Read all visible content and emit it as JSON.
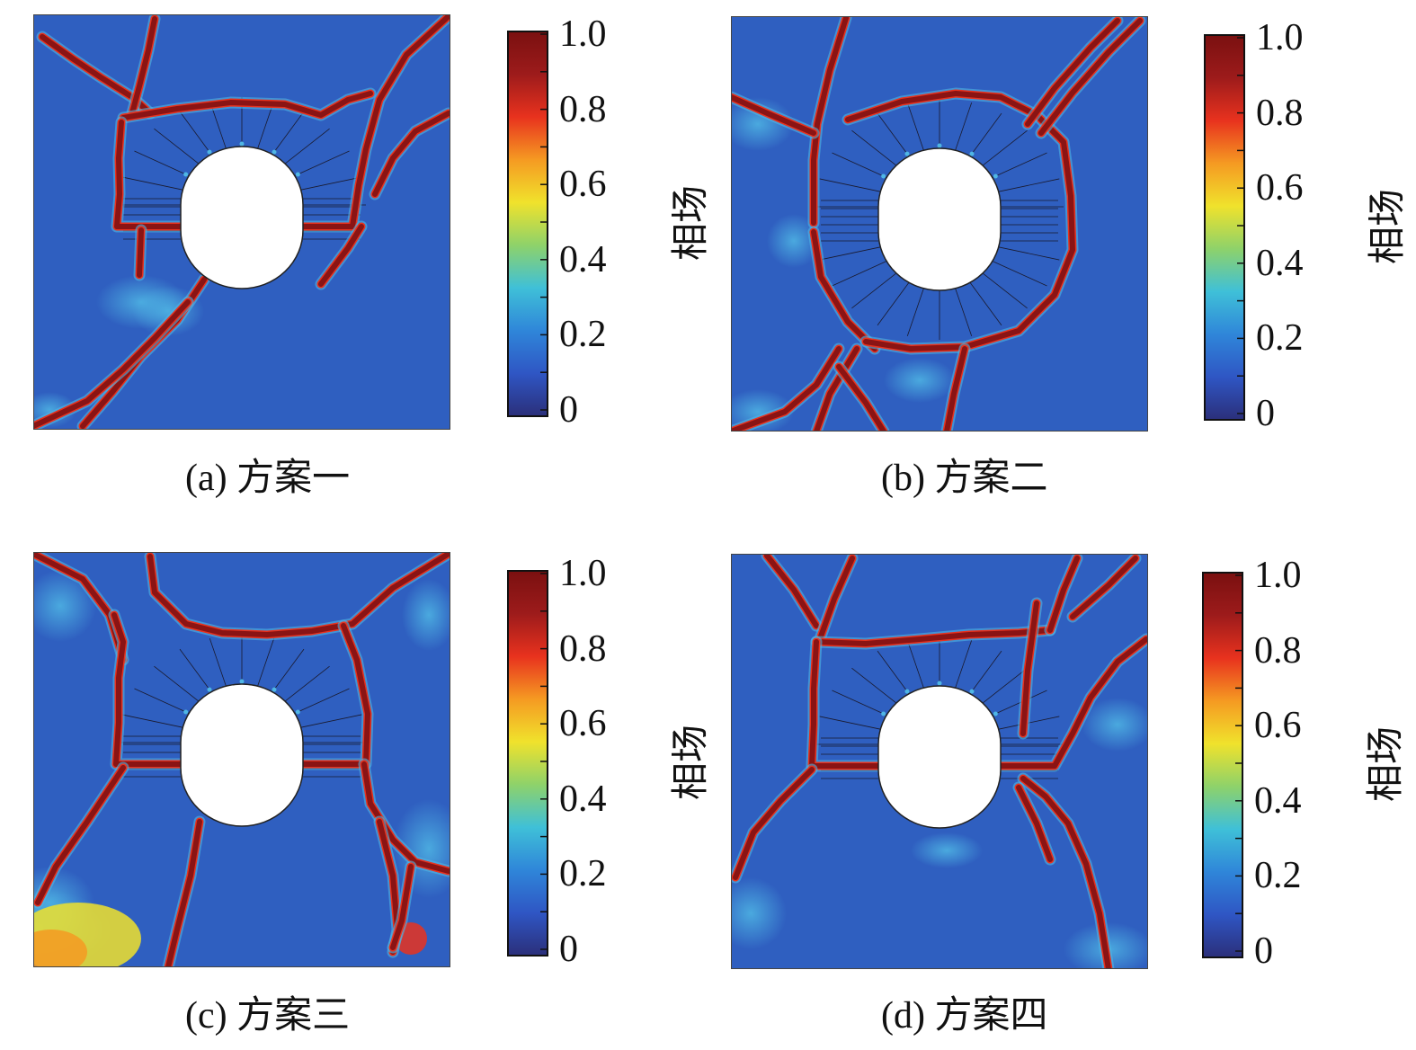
{
  "colormap": {
    "stops": [
      "#2b2f7a",
      "#2f56c4",
      "#2f86d9",
      "#3fc0d8",
      "#8ed26a",
      "#f0e22c",
      "#f59a22",
      "#e8321e",
      "#9d1b1b",
      "#7a1010"
    ],
    "background_color": "#2f5fc0",
    "crack_color": "#8a1414",
    "crack_edge_color": "#e8321e",
    "halo_color": "#4fb6e4"
  },
  "colorbar": {
    "title": "相场",
    "ticks": [
      "1.0",
      "0.8",
      "0.6",
      "0.4",
      "0.2",
      "0"
    ],
    "range": [
      0,
      1.0
    ]
  },
  "chart_data": [
    {
      "type": "heatmap",
      "caption_prefix": "(a)",
      "caption_name": "方案一",
      "colorbar_title": "相场",
      "colorbar_ticks": [
        "1.0",
        "0.8",
        "0.6",
        "0.4",
        "0.2",
        "0"
      ],
      "value_range": [
        0,
        1.0
      ]
    },
    {
      "type": "heatmap",
      "caption_prefix": "(b)",
      "caption_name": "方案二",
      "colorbar_title": "相场",
      "colorbar_ticks": [
        "1.0",
        "0.8",
        "0.6",
        "0.4",
        "0.2",
        "0"
      ],
      "value_range": [
        0,
        1.0
      ]
    },
    {
      "type": "heatmap",
      "caption_prefix": "(c)",
      "caption_name": "方案三",
      "colorbar_title": "相场",
      "colorbar_ticks": [
        "1.0",
        "0.8",
        "0.6",
        "0.4",
        "0.2",
        "0"
      ],
      "value_range": [
        0,
        1.0
      ]
    },
    {
      "type": "heatmap",
      "caption_prefix": "(d)",
      "caption_name": "方案四",
      "colorbar_title": "相场",
      "colorbar_ticks": [
        "1.0",
        "0.8",
        "0.6",
        "0.4",
        "0.2",
        "0"
      ],
      "value_range": [
        0,
        1.0
      ]
    }
  ]
}
